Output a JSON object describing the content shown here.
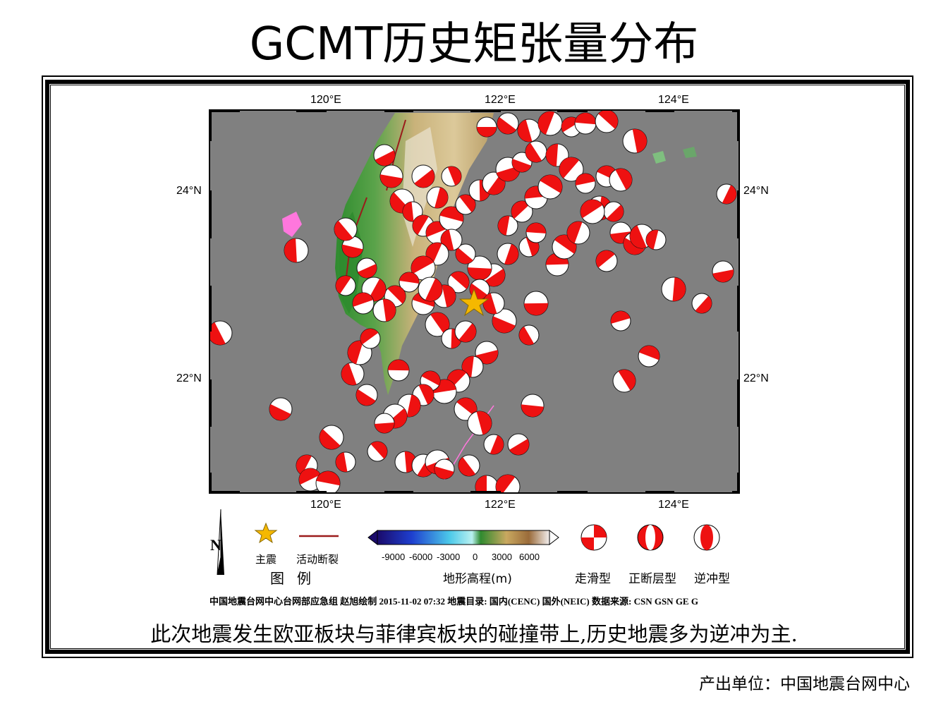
{
  "title": "GCMT历史矩张量分布",
  "map": {
    "lon_ticks": [
      "120°E",
      "122°E",
      "124°E"
    ],
    "lat_ticks": [
      "24°N",
      "22°N"
    ],
    "colors": {
      "ocean": "#808080",
      "land_low": "#2e8b2e",
      "land_mid": "#c9b27a",
      "land_high": "#e9e2d0",
      "beachball_fill": "#ee1111",
      "fault": "#9b1b1b",
      "islands_pink": "#ff77dd",
      "star": "#f5b800"
    }
  },
  "legend": {
    "main_shock": "主震",
    "active_fault": "活动断裂",
    "legend_title": "图例",
    "north_label": "N",
    "colorbar_ticks": [
      "-9000",
      "-6000",
      "-3000",
      "0",
      "3000",
      "6000"
    ],
    "colorbar_title": "地形高程(m)",
    "mechanisms": [
      "走滑型",
      "正断层型",
      "逆冲型"
    ]
  },
  "credit": "中国地震台网中心台网部应急组 赵旭绘制 2015-11-02 07:32 地震目录: 国内(CENC) 国外(NEIC) 数据来源: CSN GSN GE G",
  "caption": "此次地震发生欧亚板块与菲律宾板块的碰撞带上,历史地震多为逆冲为主.",
  "producer": "产出单位：中国地震台网中心"
}
